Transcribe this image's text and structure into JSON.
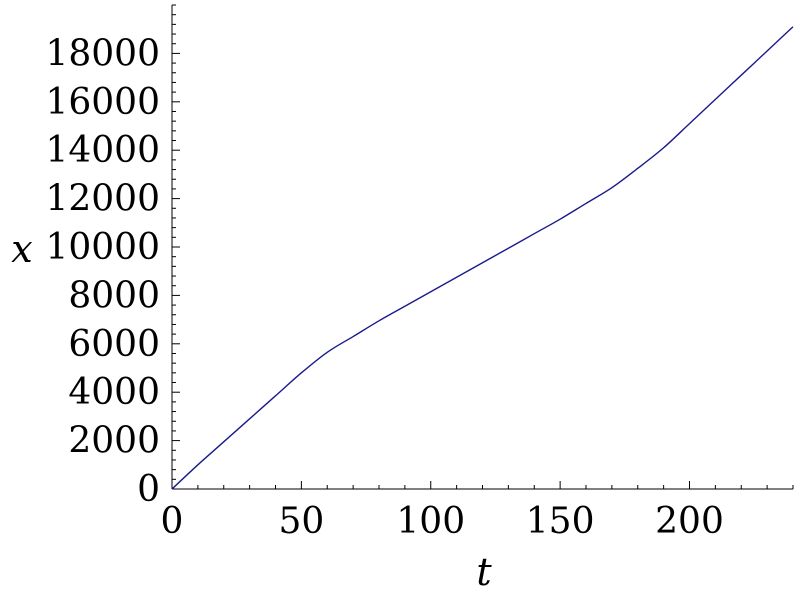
{
  "chart_data": {
    "type": "line",
    "title": "",
    "xlabel": "t",
    "ylabel": "x",
    "xlim": [
      0,
      240
    ],
    "ylim": [
      0,
      20000
    ],
    "x_ticks": [
      0,
      50,
      100,
      150,
      200
    ],
    "x_tick_labels": [
      "0",
      "50",
      "100",
      "150",
      "200"
    ],
    "y_ticks": [
      0,
      2000,
      4000,
      6000,
      8000,
      10000,
      12000,
      14000,
      16000,
      18000
    ],
    "y_tick_labels": [
      "0",
      "2000",
      "4000",
      "6000",
      "8000",
      "10000",
      "12000",
      "14000",
      "16000",
      "18000"
    ],
    "grid": false,
    "legend": "none",
    "line_color": "#1a1a8c",
    "series": [
      {
        "x": [
          0,
          10,
          20,
          30,
          40,
          50,
          60,
          70,
          80,
          90,
          100,
          110,
          120,
          130,
          140,
          150,
          160,
          170,
          180,
          190,
          200,
          210,
          220,
          230,
          240
        ],
        "values": [
          0,
          1000,
          1950,
          2900,
          3850,
          4800,
          5650,
          6300,
          6950,
          7550,
          8150,
          8750,
          9350,
          9950,
          10550,
          11150,
          11800,
          12450,
          13250,
          14100,
          15100,
          16100,
          17100,
          18100,
          19100
        ]
      }
    ]
  }
}
